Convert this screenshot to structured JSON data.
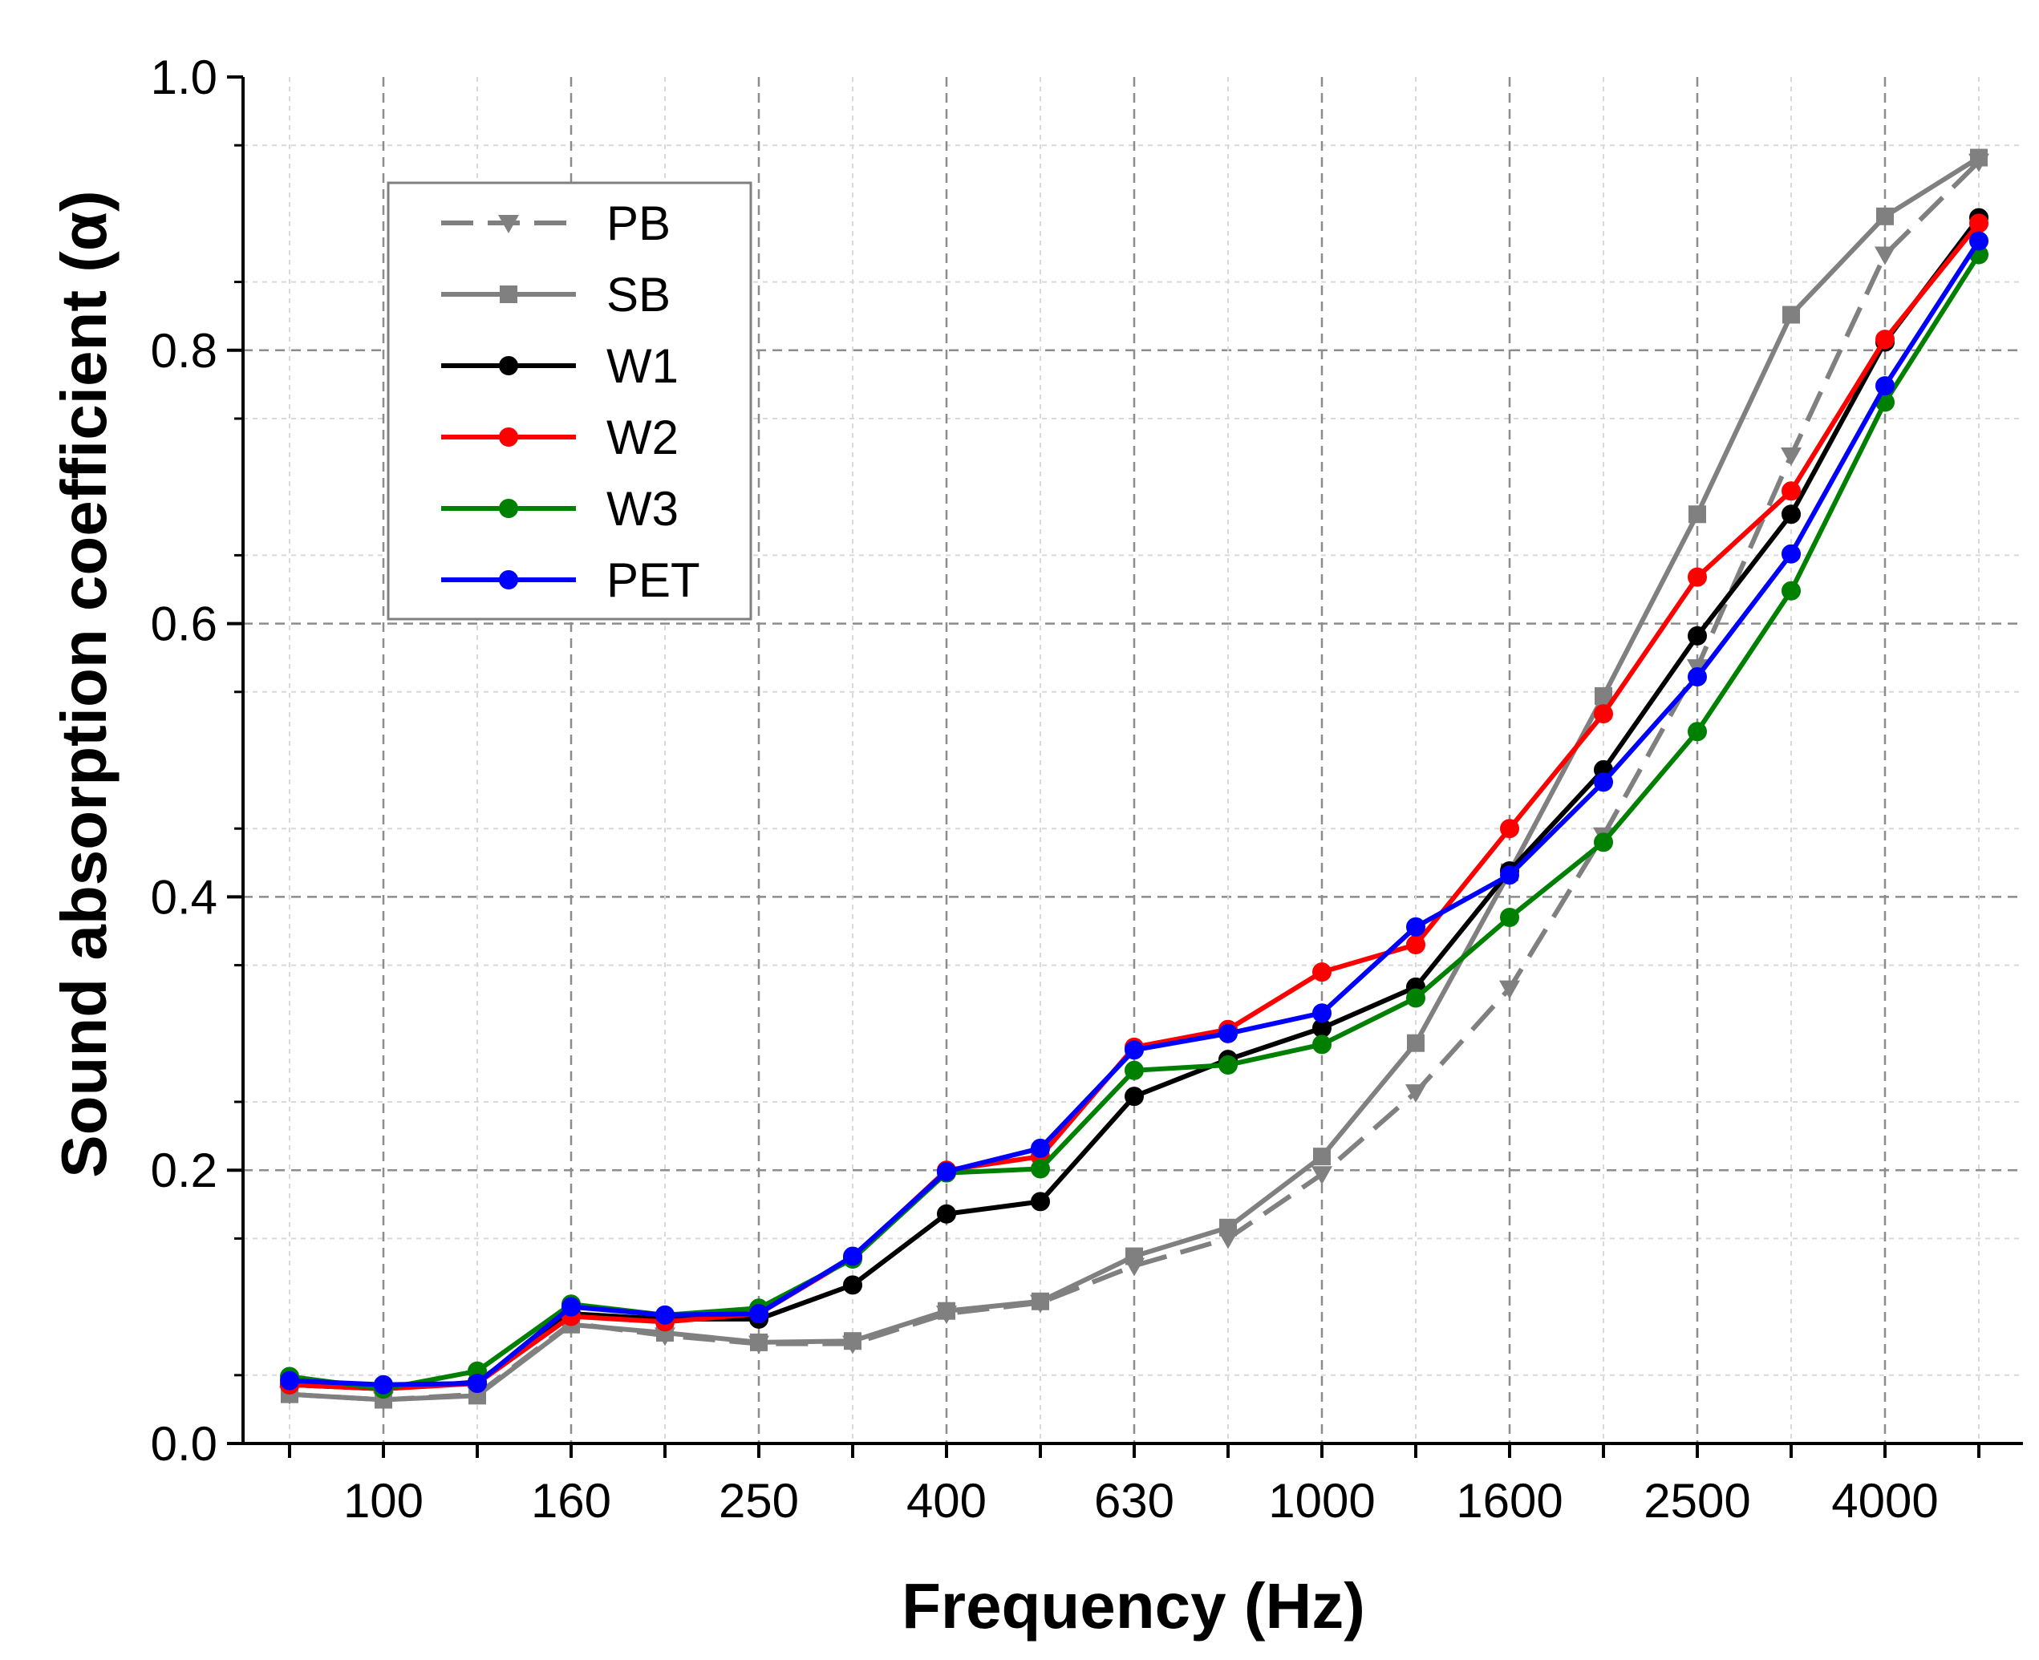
{
  "chart_data": {
    "type": "line",
    "title": "",
    "xlabel": "Frequency (Hz)",
    "ylabel": "Sound absorption coefficient (α)",
    "x_scale": "log (1/3 octave bands)",
    "x": [
      80,
      100,
      125,
      160,
      200,
      250,
      315,
      400,
      500,
      630,
      800,
      1000,
      1250,
      1600,
      2000,
      2500,
      3150,
      4000,
      5000
    ],
    "x_tick_labels": [
      "100",
      "160",
      "250",
      "400",
      "630",
      "1000",
      "1600",
      "2500",
      "4000"
    ],
    "x_tick_values": [
      100,
      160,
      250,
      400,
      630,
      1000,
      1600,
      2500,
      4000
    ],
    "ylim": [
      0.0,
      1.0
    ],
    "y_ticks": [
      0.0,
      0.2,
      0.4,
      0.6,
      0.8,
      1.0
    ],
    "y_tick_labels": [
      "0.0",
      "0.2",
      "0.4",
      "0.6",
      "0.8",
      "1.0"
    ],
    "grid": true,
    "legend_position": "top-left",
    "series": [
      {
        "name": "PB",
        "color": "#808080",
        "line": "dashed",
        "marker": "triangle-down",
        "values": [
          0.036,
          0.032,
          0.036,
          0.088,
          0.079,
          0.073,
          0.073,
          0.095,
          0.103,
          0.13,
          0.15,
          0.197,
          0.257,
          0.333,
          0.445,
          0.568,
          0.723,
          0.87,
          0.938
        ]
      },
      {
        "name": "SB",
        "color": "#808080",
        "line": "solid",
        "marker": "square",
        "values": [
          0.036,
          0.032,
          0.035,
          0.087,
          0.081,
          0.074,
          0.075,
          0.097,
          0.104,
          0.137,
          0.158,
          0.21,
          0.293,
          0.418,
          0.547,
          0.68,
          0.826,
          0.898,
          0.941
        ]
      },
      {
        "name": "W1",
        "color": "#000000",
        "line": "solid",
        "marker": "circle",
        "values": [
          0.043,
          0.04,
          0.045,
          0.095,
          0.091,
          0.091,
          0.116,
          0.168,
          0.177,
          0.254,
          0.281,
          0.304,
          0.334,
          0.419,
          0.493,
          0.591,
          0.68,
          0.806,
          0.897
        ]
      },
      {
        "name": "W2",
        "color": "#ff0000",
        "line": "solid",
        "marker": "circle",
        "values": [
          0.043,
          0.04,
          0.044,
          0.093,
          0.089,
          0.095,
          0.136,
          0.2,
          0.21,
          0.29,
          0.303,
          0.345,
          0.365,
          0.45,
          0.534,
          0.634,
          0.697,
          0.808,
          0.893
        ]
      },
      {
        "name": "W3",
        "color": "#008000",
        "line": "solid",
        "marker": "circle",
        "values": [
          0.049,
          0.04,
          0.053,
          0.102,
          0.094,
          0.099,
          0.135,
          0.198,
          0.201,
          0.273,
          0.277,
          0.292,
          0.326,
          0.385,
          0.44,
          0.521,
          0.624,
          0.762,
          0.87
        ]
      },
      {
        "name": "PET",
        "color": "#0000ff",
        "line": "solid",
        "marker": "circle",
        "values": [
          0.046,
          0.043,
          0.044,
          0.1,
          0.094,
          0.095,
          0.137,
          0.199,
          0.216,
          0.288,
          0.3,
          0.315,
          0.378,
          0.416,
          0.484,
          0.561,
          0.651,
          0.774,
          0.88
        ]
      }
    ]
  }
}
